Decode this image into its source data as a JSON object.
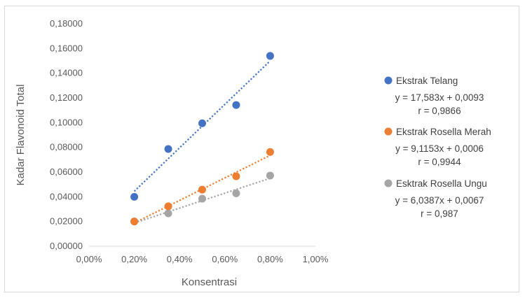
{
  "chart_data": {
    "type": "scatter",
    "title": "",
    "xlabel": "Konsentrasi",
    "ylabel": "Kadar Flavonoid Total",
    "xlim": [
      0,
      1
    ],
    "ylim": [
      0,
      0.18
    ],
    "x_tick_values": [
      0,
      0.002,
      0.004,
      0.006,
      0.008,
      0.01
    ],
    "x_ticks": [
      "0,00%",
      "0,20%",
      "0,40%",
      "0,60%",
      "0,80%",
      "1,00%"
    ],
    "y_tick_values": [
      0,
      0.02,
      0.04,
      0.06,
      0.08,
      0.1,
      0.12,
      0.14,
      0.16,
      0.18
    ],
    "y_ticks": [
      "0,00000",
      "0,02000",
      "0,04000",
      "0,06000",
      "0,08000",
      "0,10000",
      "0,12000",
      "0,14000",
      "0,16000",
      "0,18000"
    ],
    "grid": false,
    "legend_position": "right",
    "trendline": "linear",
    "series": [
      {
        "name": "Ekstrak Telang",
        "color": "#4472C4",
        "x": [
          0.002,
          0.0035,
          0.005,
          0.0065,
          0.008
        ],
        "y": [
          0.04,
          0.0787,
          0.0995,
          0.1143,
          0.154
        ],
        "equation": "y = 17,583x + 0,0093",
        "r": "r = 0,9866",
        "fit": {
          "slope": 17.583,
          "intercept": 0.0093
        }
      },
      {
        "name": "Ekstrak Rosella Merah",
        "color": "#ED7D31",
        "x": [
          0.002,
          0.0035,
          0.005,
          0.0065,
          0.008
        ],
        "y": [
          0.02,
          0.0323,
          0.0458,
          0.0566,
          0.0763
        ],
        "equation": "y = 9,1153x + 0,0006",
        "r": "r = 0,9944",
        "fit": {
          "slope": 9.1153,
          "intercept": 0.0006
        }
      },
      {
        "name": "Esktrak Rosella Ungu",
        "color": "#A5A5A5",
        "x": [
          0.002,
          0.0035,
          0.005,
          0.0065,
          0.008
        ],
        "y": [
          0.02,
          0.0266,
          0.0385,
          0.0428,
          0.0572
        ],
        "equation": "y = 6,0387x + 0,0067",
        "r": "r = 0,987",
        "fit": {
          "slope": 6.0387,
          "intercept": 0.0067
        }
      }
    ]
  }
}
